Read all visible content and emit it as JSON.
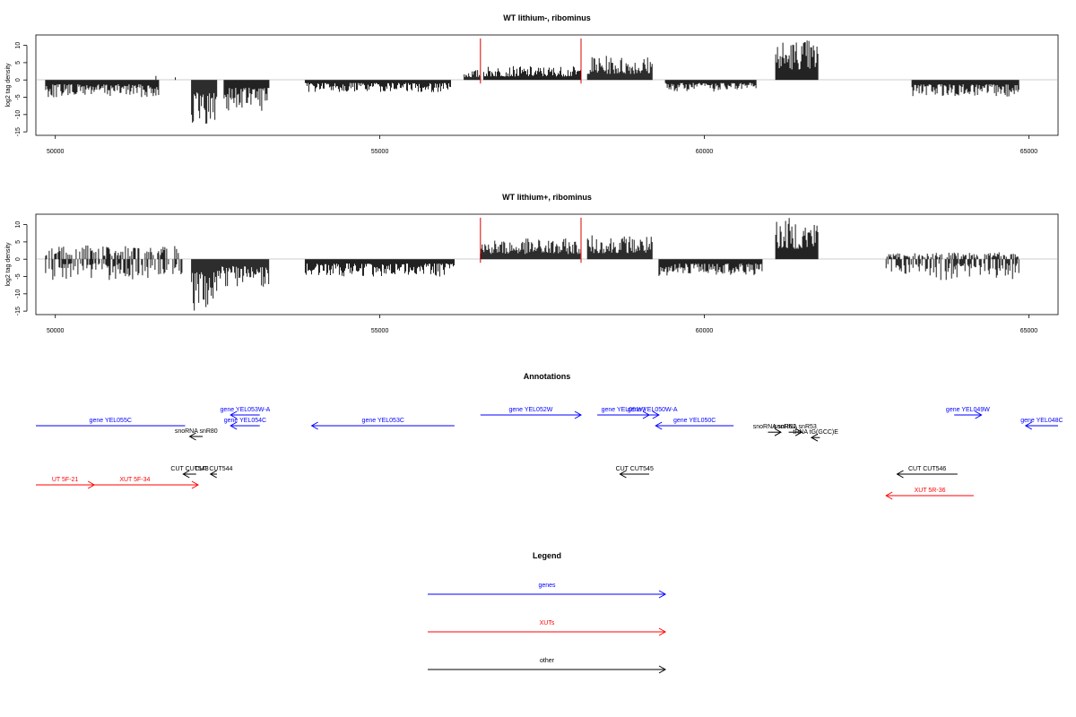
{
  "chart_data": [
    {
      "type": "bar",
      "title": "WT lithium-, ribominus",
      "xlabel": "",
      "ylabel": "log2 tag density",
      "xlim": [
        49700,
        65450
      ],
      "ylim": [
        -16,
        13
      ],
      "yticks": [
        -15,
        -10,
        -5,
        0,
        5,
        10
      ],
      "xticks": [
        50000,
        55000,
        60000,
        65000
      ],
      "grid": false,
      "marker_color": "#dd0000",
      "markers_x": [
        56550,
        58100
      ],
      "segments": [
        {
          "start": 49850,
          "end": 51600,
          "min": -5,
          "max": 0
        },
        {
          "start": 51550,
          "end": 51560,
          "min": 0,
          "max": 2.5
        },
        {
          "start": 51850,
          "end": 51860,
          "min": 0,
          "max": 2
        },
        {
          "start": 52100,
          "end": 52500,
          "min": -14,
          "max": -3
        },
        {
          "start": 52600,
          "end": 53300,
          "min": -9,
          "max": -2
        },
        {
          "start": 53850,
          "end": 56100,
          "min": -3.5,
          "max": 0
        },
        {
          "start": 56300,
          "end": 56550,
          "min": 0,
          "max": 3
        },
        {
          "start": 56600,
          "end": 58100,
          "min": 0,
          "max": 4
        },
        {
          "start": 58200,
          "end": 59200,
          "min": 0,
          "max": 7
        },
        {
          "start": 59400,
          "end": 60800,
          "min": -3.5,
          "max": 0
        },
        {
          "start": 61100,
          "end": 61750,
          "min": 0,
          "max": 12
        },
        {
          "start": 63200,
          "end": 64850,
          "min": -5,
          "max": 0
        }
      ]
    },
    {
      "type": "bar",
      "title": "WT lithium+, ribominus",
      "xlabel": "",
      "ylabel": "log2 tag density",
      "xlim": [
        49700,
        65450
      ],
      "ylim": [
        -16,
        13
      ],
      "yticks": [
        -15,
        -10,
        -5,
        0,
        5,
        10
      ],
      "xticks": [
        50000,
        55000,
        60000,
        65000
      ],
      "grid": false,
      "marker_color": "#dd0000",
      "markers_x": [
        56550,
        58100
      ],
      "segments": [
        {
          "start": 49850,
          "end": 51950,
          "min": -6,
          "max": 4
        },
        {
          "start": 52100,
          "end": 52500,
          "min": -15,
          "max": -3
        },
        {
          "start": 52500,
          "end": 53300,
          "min": -8,
          "max": -2
        },
        {
          "start": 53850,
          "end": 56150,
          "min": -5,
          "max": 0
        },
        {
          "start": 56550,
          "end": 58100,
          "min": 0,
          "max": 6
        },
        {
          "start": 58200,
          "end": 59200,
          "min": 0,
          "max": 7
        },
        {
          "start": 59300,
          "end": 60900,
          "min": -5,
          "max": 0
        },
        {
          "start": 61100,
          "end": 61750,
          "min": 0,
          "max": 12
        },
        {
          "start": 62800,
          "end": 64850,
          "min": -6,
          "max": 2
        }
      ]
    }
  ],
  "annotations": {
    "title": "Annotations",
    "xlim": [
      49700,
      65450
    ],
    "features": [
      {
        "label": "gene YEL055C",
        "color": "#0000ff",
        "start": 49700,
        "end": 52000,
        "strand": "none",
        "row": 1
      },
      {
        "label": "gene YEL053W-A",
        "color": "#0000ff",
        "start": 52700,
        "end": 53150,
        "strand": "-",
        "row": 0
      },
      {
        "label": "gene YEL054C",
        "color": "#0000ff",
        "start": 52700,
        "end": 53150,
        "strand": "-",
        "row": 1
      },
      {
        "label": "gene YEL053C",
        "color": "#0000ff",
        "start": 53950,
        "end": 56150,
        "strand": "-",
        "row": 1
      },
      {
        "label": "gene YEL052W",
        "color": "#0000ff",
        "start": 56550,
        "end": 58100,
        "strand": "+",
        "row": 0
      },
      {
        "label": "gene YEL051W",
        "color": "#0000ff",
        "start": 58350,
        "end": 59150,
        "strand": "+",
        "row": 0
      },
      {
        "label": "gene YEL050W-A",
        "color": "#0000ff",
        "start": 59100,
        "end": 59300,
        "strand": "+",
        "row": 0
      },
      {
        "label": "gene YEL050C",
        "color": "#0000ff",
        "start": 59250,
        "end": 60450,
        "strand": "-",
        "row": 1
      },
      {
        "label": "gene YEL049W",
        "color": "#0000ff",
        "start": 63850,
        "end": 64270,
        "strand": "+",
        "row": 0
      },
      {
        "label": "gene YEL048C",
        "color": "#0000ff",
        "start": 64950,
        "end": 65450,
        "strand": "-",
        "row": 1
      },
      {
        "label": "snoRNA snR80",
        "color": "#000000",
        "start": 52070,
        "end": 52270,
        "strand": "-",
        "row": 2
      },
      {
        "label": "snoRNA snR61",
        "color": "#000000",
        "start": 60980,
        "end": 61180,
        "strand": "+",
        "row": 1.6
      },
      {
        "label": "snoRNA snR53",
        "color": "#000000",
        "start": 61300,
        "end": 61500,
        "strand": "+",
        "row": 1.6
      },
      {
        "label": "tRNA tG(GCC)E",
        "color": "#000000",
        "start": 61650,
        "end": 61780,
        "strand": "-",
        "row": 2.1
      },
      {
        "label": "CUT CUT543",
        "color": "#000000",
        "start": 51970,
        "end": 52170,
        "strand": "-",
        "row": 3
      },
      {
        "label": "CUT CUT544",
        "color": "#000000",
        "start": 52390,
        "end": 52490,
        "strand": "-",
        "row": 3
      },
      {
        "label": "CUT CUT545",
        "color": "#000000",
        "start": 58700,
        "end": 59150,
        "strand": "-",
        "row": 3
      },
      {
        "label": "CUT CUT546",
        "color": "#000000",
        "start": 62970,
        "end": 63900,
        "strand": "-",
        "row": 3
      },
      {
        "label": "UT 5F-21",
        "color": "#ff0000",
        "start": 49700,
        "end": 50600,
        "strand": "+",
        "row": 4
      },
      {
        "label": "XUT 5F-34",
        "color": "#ff0000",
        "start": 50250,
        "end": 52200,
        "strand": "+",
        "row": 4
      },
      {
        "label": "XUT 5R-36",
        "color": "#ff0000",
        "start": 62800,
        "end": 64150,
        "strand": "-",
        "row": 5
      }
    ]
  },
  "legend": {
    "title": "Legend",
    "items": [
      {
        "label": "genes",
        "color": "#0000ff"
      },
      {
        "label": "XUTs",
        "color": "#ff0000"
      },
      {
        "label": "other",
        "color": "#000000"
      }
    ]
  }
}
